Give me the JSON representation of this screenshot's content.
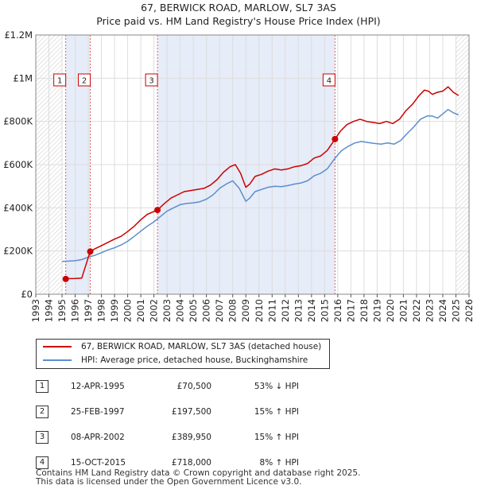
{
  "title_line1": "67, BERWICK ROAD, MARLOW, SL7 3AS",
  "title_line2": "Price paid vs. HM Land Registry's House Price Index (HPI)",
  "chart_data": {
    "type": "line",
    "xlim": [
      1993.0,
      2026.0
    ],
    "ylim": [
      0,
      1200000
    ],
    "y_ticks": [
      0,
      200000,
      400000,
      600000,
      800000,
      1000000,
      1200000
    ],
    "y_tick_labels": [
      "£0",
      "£200K",
      "£400K",
      "£600K",
      "£800K",
      "£1M",
      "£1.2M"
    ],
    "x_tick_labels": [
      "1993",
      "1994",
      "1995",
      "1996",
      "1997",
      "1998",
      "1999",
      "2000",
      "2001",
      "2002",
      "2003",
      "2004",
      "2005",
      "2006",
      "2007",
      "2008",
      "2009",
      "2010",
      "2011",
      "2012",
      "2013",
      "2014",
      "2015",
      "2016",
      "2017",
      "2018",
      "2019",
      "2020",
      "2021",
      "2022",
      "2023",
      "2024",
      "2025",
      "2026"
    ],
    "series": [
      {
        "name": "67, BERWICK ROAD, MARLOW, SL7 3AS (detached house)",
        "color": "#cc0000",
        "x": [
          1995.28,
          1995.5,
          1996.0,
          1996.5,
          1997.14,
          1997.5,
          1998.0,
          1998.5,
          1999.0,
          1999.5,
          2000.0,
          2000.5,
          2001.0,
          2001.5,
          2002.27,
          2002.8,
          2003.3,
          2003.8,
          2004.3,
          2004.8,
          2005.3,
          2005.8,
          2006.3,
          2006.8,
          2007.3,
          2007.8,
          2008.2,
          2008.6,
          2009.0,
          2009.3,
          2009.7,
          2010.2,
          2010.7,
          2011.2,
          2011.7,
          2012.2,
          2012.7,
          2013.2,
          2013.7,
          2014.2,
          2014.7,
          2015.2,
          2015.79,
          2016.2,
          2016.7,
          2017.2,
          2017.7,
          2018.2,
          2018.7,
          2019.2,
          2019.7,
          2020.2,
          2020.7,
          2021.2,
          2021.7,
          2022.2,
          2022.6,
          2022.9,
          2023.2,
          2023.6,
          2024.0,
          2024.4,
          2024.8,
          2025.2
        ],
        "values": [
          70500,
          72000,
          73000,
          74500,
          197500,
          210000,
          225000,
          240000,
          255000,
          268000,
          290000,
          315000,
          345000,
          370000,
          389950,
          420000,
          445000,
          460000,
          475000,
          480000,
          485000,
          490000,
          505000,
          530000,
          565000,
          590000,
          600000,
          560000,
          495000,
          510000,
          545000,
          555000,
          570000,
          580000,
          575000,
          580000,
          590000,
          595000,
          605000,
          630000,
          640000,
          665000,
          718000,
          755000,
          785000,
          800000,
          810000,
          800000,
          795000,
          790000,
          800000,
          790000,
          810000,
          850000,
          880000,
          920000,
          945000,
          940000,
          925000,
          935000,
          940000,
          960000,
          935000,
          920000
        ]
      },
      {
        "name": "HPI: Average price, detached house, Buckinghamshire",
        "color": "#5b8fcb",
        "x": [
          1995.0,
          1995.5,
          1996.0,
          1996.5,
          1997.0,
          1997.5,
          1998.0,
          1998.5,
          1999.0,
          1999.5,
          2000.0,
          2000.5,
          2001.0,
          2001.5,
          2002.0,
          2002.5,
          2003.0,
          2003.5,
          2004.0,
          2004.5,
          2005.0,
          2005.5,
          2006.0,
          2006.5,
          2007.0,
          2007.5,
          2008.0,
          2008.5,
          2009.0,
          2009.3,
          2009.7,
          2010.2,
          2010.7,
          2011.2,
          2011.7,
          2012.2,
          2012.7,
          2013.2,
          2013.7,
          2014.2,
          2014.7,
          2015.2,
          2015.8,
          2016.3,
          2016.8,
          2017.3,
          2017.8,
          2018.3,
          2018.8,
          2019.3,
          2019.8,
          2020.3,
          2020.8,
          2021.3,
          2021.8,
          2022.3,
          2022.8,
          2023.2,
          2023.6,
          2024.0,
          2024.4,
          2024.8,
          2025.2
        ],
        "values": [
          152000,
          153000,
          155000,
          160000,
          172000,
          180000,
          192000,
          205000,
          215000,
          228000,
          245000,
          268000,
          292000,
          315000,
          335000,
          360000,
          385000,
          400000,
          415000,
          420000,
          423000,
          428000,
          440000,
          460000,
          490000,
          510000,
          525000,
          490000,
          430000,
          445000,
          475000,
          485000,
          495000,
          500000,
          498000,
          503000,
          510000,
          515000,
          525000,
          548000,
          560000,
          580000,
          630000,
          665000,
          685000,
          700000,
          707000,
          702000,
          698000,
          695000,
          700000,
          695000,
          712000,
          745000,
          775000,
          810000,
          825000,
          825000,
          815000,
          835000,
          855000,
          840000,
          830000
        ]
      }
    ],
    "sale_markers": [
      {
        "label": "1",
        "x": 1995.28,
        "value": 70500
      },
      {
        "label": "2",
        "x": 1997.15,
        "value": 197500
      },
      {
        "label": "3",
        "x": 2002.27,
        "value": 389950
      },
      {
        "label": "4",
        "x": 2015.79,
        "value": 718000
      }
    ],
    "hatched_ranges": [
      [
        1993.0,
        1995.0
      ],
      [
        2025.0,
        2026.0
      ]
    ],
    "shaded_ranges": [
      [
        1995.28,
        1997.15
      ],
      [
        2002.27,
        2015.79
      ]
    ]
  },
  "legend": {
    "property_label": "67, BERWICK ROAD, MARLOW, SL7 3AS (detached house)",
    "hpi_label": "HPI: Average price, detached house, Buckinghamshire",
    "property_color": "#cc0000",
    "hpi_color": "#5b8fcb"
  },
  "sales": [
    {
      "num": "1",
      "date": "12-APR-1995",
      "price": "£70,500",
      "hpi": "53% ↓ HPI"
    },
    {
      "num": "2",
      "date": "25-FEB-1997",
      "price": "£197,500",
      "hpi": "15% ↑ HPI"
    },
    {
      "num": "3",
      "date": "08-APR-2002",
      "price": "£389,950",
      "hpi": "15% ↑ HPI"
    },
    {
      "num": "4",
      "date": "15-OCT-2015",
      "price": "£718,000",
      "hpi": "8% ↑ HPI"
    }
  ],
  "footer_line1": "Contains HM Land Registry data © Crown copyright and database right 2025.",
  "footer_line2": "This data is licensed under the Open Government Licence v3.0."
}
